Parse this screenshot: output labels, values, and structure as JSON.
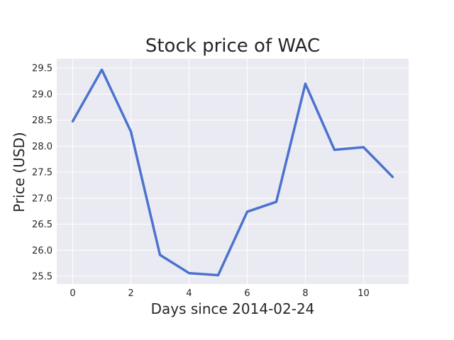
{
  "chart_data": {
    "type": "line",
    "title": "Stock price of WAC",
    "xlabel": "Days since 2014-02-24",
    "ylabel": "Price (USD)",
    "x": [
      0,
      1,
      2,
      3,
      4,
      5,
      6,
      7,
      8,
      9,
      10,
      11
    ],
    "series": [
      {
        "name": "",
        "values": [
          28.48,
          29.47,
          28.28,
          25.91,
          25.56,
          25.52,
          26.74,
          26.93,
          29.2,
          27.93,
          27.98,
          27.41
        ]
      }
    ],
    "xlim": [
      -0.55,
      11.55
    ],
    "ylim": [
      25.35,
      29.68
    ],
    "x_ticks": [
      "0",
      "2",
      "4",
      "6",
      "8",
      "10"
    ],
    "y_ticks": [
      "25.5",
      "26.0",
      "26.5",
      "27.0",
      "27.5",
      "28.0",
      "28.5",
      "29.0",
      "29.5"
    ],
    "grid": true,
    "line_color": "#4c72d0",
    "background_color": "#eaeaf2"
  }
}
